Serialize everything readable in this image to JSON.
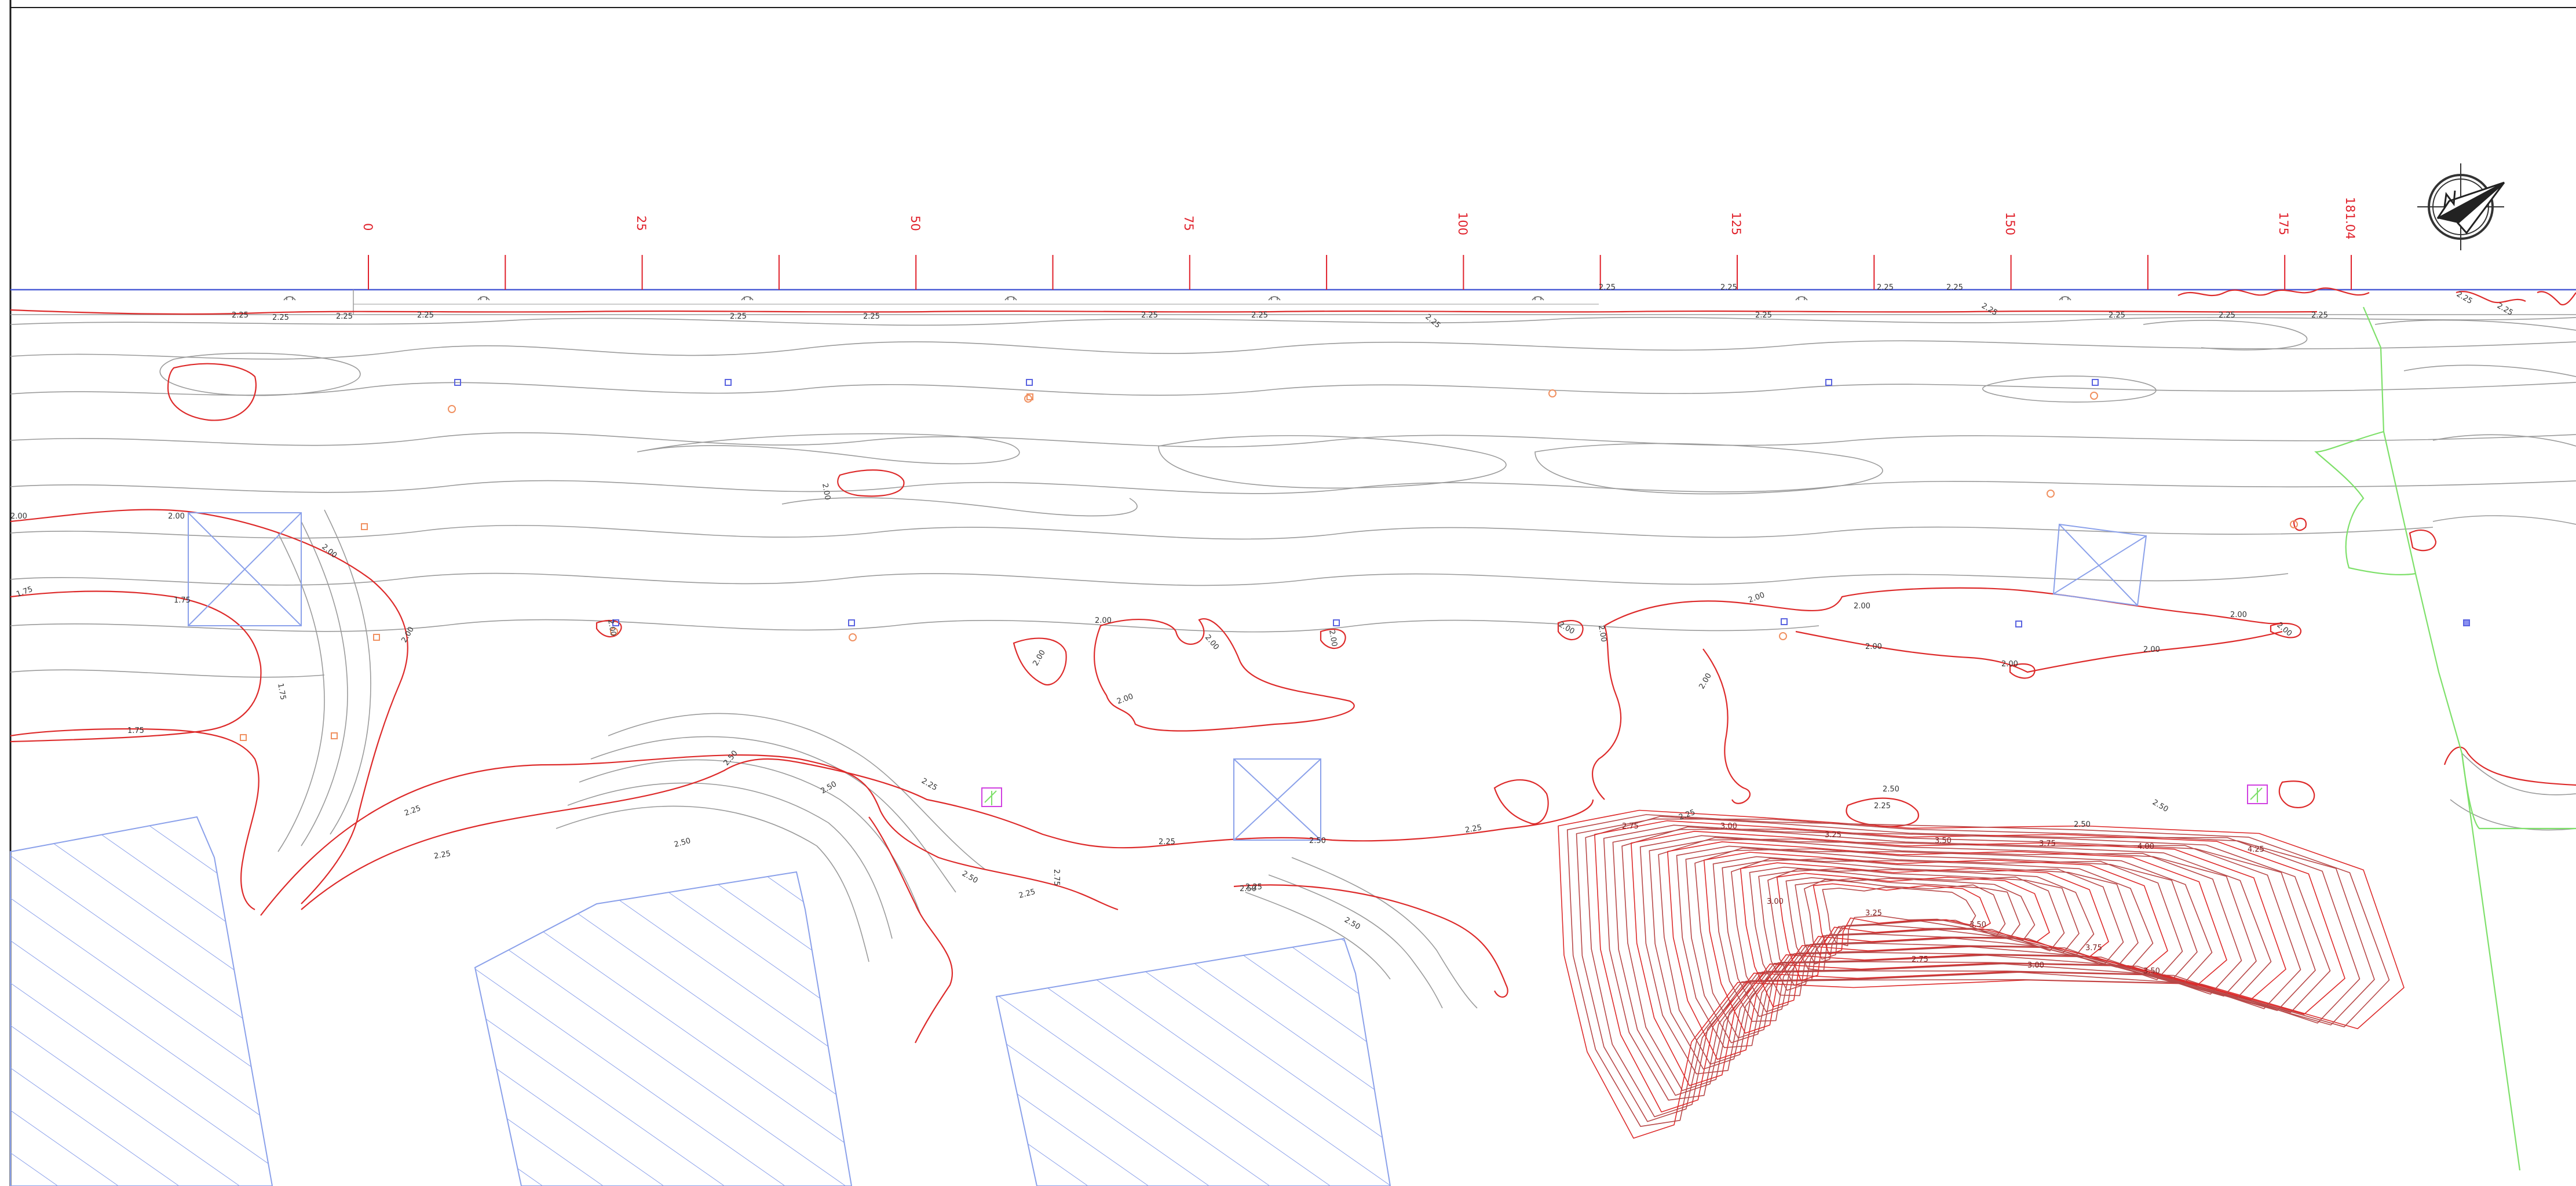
{
  "drawing": {
    "colors": {
      "background": "#ffffff",
      "frame": "#1a1a1a",
      "baseline": "#4a5bd6",
      "station_ticks": "#e0202a",
      "contour_minor": "#9a9a9a",
      "contour_major": "#dd2a2a",
      "contour_dense": "#b84848",
      "hatch": "#8aa0ea",
      "property_line": "#7ee06a",
      "markers_blue": "#5a63e0",
      "markers_orange": "#f09060",
      "markers_magenta": "#d040e0"
    },
    "north_arrow": {
      "icon": "north-arrow-compass-icon"
    }
  },
  "stations": {
    "labels": [
      "0",
      "25",
      "50",
      "75",
      "100",
      "125",
      "150",
      "175",
      "181.04"
    ]
  },
  "contour_labels": {
    "top_band": [
      "2.25",
      "2.25",
      "2.25",
      "2.25",
      "2.25",
      "2.25",
      "2.25",
      "2.25",
      "2.25",
      "2.25",
      "2.25",
      "2.25",
      "2.25",
      "2.25",
      "2.25",
      "2.25",
      "2.25",
      "2.25",
      "2.25",
      "2.25"
    ],
    "mid_band": [
      "2.00",
      "2.00",
      "1.75",
      "1.75",
      "1.75",
      "1.75",
      "2.00",
      "2.00",
      "2.00",
      "2.00",
      "2.00",
      "2.00",
      "2.00",
      "2.00",
      "2.00",
      "2.00",
      "2.00",
      "2.00",
      "2.00",
      "2.00",
      "2.00",
      "2.00",
      "2.00",
      "2.00",
      "2.00"
    ],
    "lower_band": [
      "2.25",
      "2.50",
      "2.25",
      "2.50",
      "2.50",
      "2.25",
      "2.50",
      "2.25",
      "2.75",
      "2.25",
      "2.25",
      "2.50",
      "2.25",
      "2.50",
      "2.50",
      "2.50",
      "2.25",
      "2.25",
      "2.50",
      "2.50"
    ],
    "mound": [
      "2.75",
      "3.00",
      "3.25",
      "3.50",
      "3.75",
      "4.00",
      "4.25",
      "3.00",
      "3.25",
      "3.50",
      "3.75",
      "2.75",
      "3.00",
      "3.50"
    ]
  }
}
